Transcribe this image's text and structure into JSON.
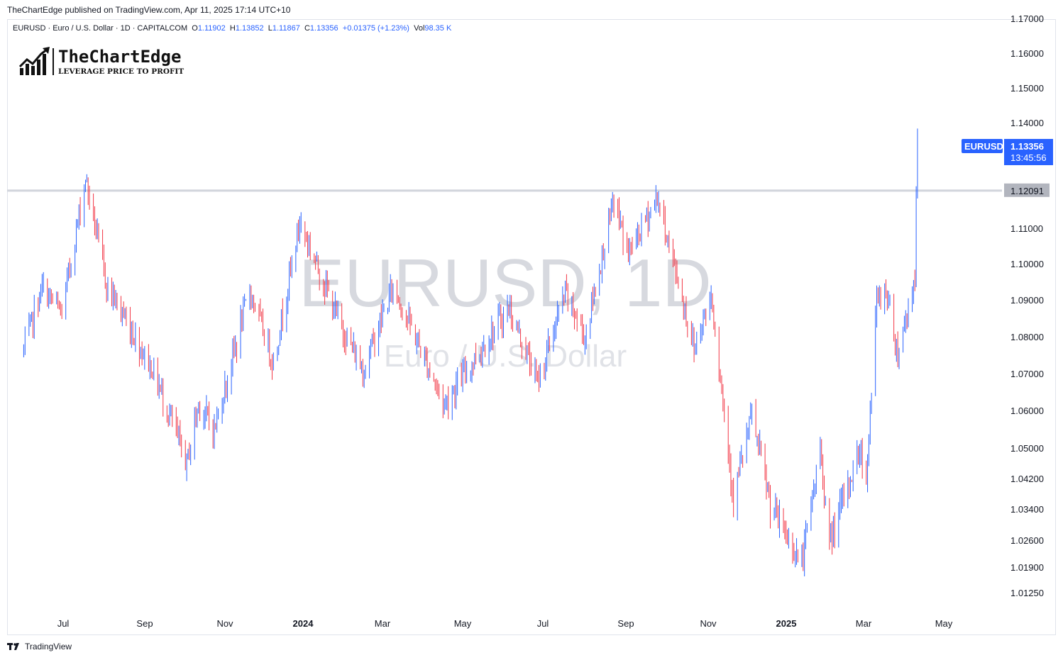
{
  "publisher_line": "TheChartEdge published on TradingView.com, Apr 11, 2025 17:14 UTC+10",
  "legend": {
    "symbol_desc": "EURUSD · Euro / U.S. Dollar · 1D · CAPITALCOM",
    "o_label": "O",
    "o": "1.11902",
    "h_label": "H",
    "h": "1.13852",
    "l_label": "L",
    "l": "1.11867",
    "c_label": "C",
    "c": "1.13356",
    "change": "+0.01375 (+1.23%)",
    "vol_label": "Vol",
    "vol": "98.35 K"
  },
  "logo": {
    "name": "TheChartEdge",
    "tagline": "LEVERAGE PRICE TO PROFIT"
  },
  "watermark": {
    "line1": "EURUSD, 1D",
    "line2": "Euro / U.S. Dollar"
  },
  "footer": {
    "brand": "TradingView",
    "brand_icon": "tradingview-logo-icon"
  },
  "colors": {
    "up": "#2962ff",
    "down": "#f23645",
    "level_line": "#d1d4dc",
    "price_badge": "#2962ff",
    "level_badge": "#b2b5be"
  },
  "chart_data": {
    "type": "candlestick",
    "symbol": "EURUSD",
    "interval": "1D",
    "y_ticks": [
      1.17,
      1.16,
      1.15,
      1.14,
      1.11,
      1.1,
      1.09,
      1.08,
      1.07,
      1.06,
      1.05,
      1.042,
      1.034,
      1.026,
      1.019,
      1.0125
    ],
    "y_tick_labels": [
      "1.17000",
      "1.16000",
      "1.15000",
      "1.14000",
      "1.11000",
      "1.10000",
      "1.09000",
      "1.08000",
      "1.07000",
      "1.06000",
      "1.05000",
      "1.04200",
      "1.03400",
      "1.02600",
      "1.01900",
      "1.01250"
    ],
    "x_ticks": [
      {
        "label": "Jul",
        "date": "2023-07-01",
        "bold": false
      },
      {
        "label": "Sep",
        "date": "2023-09-01",
        "bold": false
      },
      {
        "label": "Nov",
        "date": "2023-11-01",
        "bold": false
      },
      {
        "label": "2024",
        "date": "2024-01-01",
        "bold": true
      },
      {
        "label": "Mar",
        "date": "2024-03-01",
        "bold": false
      },
      {
        "label": "May",
        "date": "2024-05-01",
        "bold": false
      },
      {
        "label": "Jul",
        "date": "2024-07-01",
        "bold": false
      },
      {
        "label": "Sep",
        "date": "2024-09-01",
        "bold": false
      },
      {
        "label": "Nov",
        "date": "2024-11-01",
        "bold": false
      },
      {
        "label": "2025",
        "date": "2025-01-01",
        "bold": true
      },
      {
        "label": "Mar",
        "date": "2025-03-01",
        "bold": false
      },
      {
        "label": "May",
        "date": "2025-05-01",
        "bold": false
      }
    ],
    "horizontal_level": {
      "value": 1.12091,
      "label": "1.12091"
    },
    "last_price": {
      "symbol": "EURUSD",
      "value": 1.13356,
      "label": "1.13356",
      "countdown": "13:45:56"
    },
    "price_path": [
      {
        "d": "2023-06-01",
        "v": 1.0765
      },
      {
        "d": "2023-06-15",
        "v": 1.0935
      },
      {
        "d": "2023-06-30",
        "v": 1.0865
      },
      {
        "d": "2023-07-18",
        "v": 1.1245
      },
      {
        "d": "2023-08-03",
        "v": 1.0945
      },
      {
        "d": "2023-08-24",
        "v": 1.0805
      },
      {
        "d": "2023-09-08",
        "v": 1.0705
      },
      {
        "d": "2023-10-03",
        "v": 1.046
      },
      {
        "d": "2023-10-12",
        "v": 1.062
      },
      {
        "d": "2023-10-24",
        "v": 1.055
      },
      {
        "d": "2023-11-20",
        "v": 1.093
      },
      {
        "d": "2023-12-08",
        "v": 1.073
      },
      {
        "d": "2023-12-28",
        "v": 1.112
      },
      {
        "d": "2024-01-26",
        "v": 1.085
      },
      {
        "d": "2024-02-14",
        "v": 1.071
      },
      {
        "d": "2024-03-08",
        "v": 1.094
      },
      {
        "d": "2024-04-16",
        "v": 1.062
      },
      {
        "d": "2024-06-04",
        "v": 1.088
      },
      {
        "d": "2024-06-26",
        "v": 1.068
      },
      {
        "d": "2024-07-17",
        "v": 1.092
      },
      {
        "d": "2024-08-01",
        "v": 1.08
      },
      {
        "d": "2024-08-23",
        "v": 1.118
      },
      {
        "d": "2024-09-03",
        "v": 1.103
      },
      {
        "d": "2024-09-25",
        "v": 1.119
      },
      {
        "d": "2024-10-23",
        "v": 1.077
      },
      {
        "d": "2024-11-05",
        "v": 1.092
      },
      {
        "d": "2024-11-22",
        "v": 1.037
      },
      {
        "d": "2024-12-06",
        "v": 1.059
      },
      {
        "d": "2024-12-20",
        "v": 1.035
      },
      {
        "d": "2025-01-13",
        "v": 1.02
      },
      {
        "d": "2025-01-27",
        "v": 1.05
      },
      {
        "d": "2025-02-03",
        "v": 1.025
      },
      {
        "d": "2025-02-26",
        "v": 1.05
      },
      {
        "d": "2025-03-03",
        "v": 1.042
      },
      {
        "d": "2025-03-11",
        "v": 1.09
      },
      {
        "d": "2025-03-18",
        "v": 1.093
      },
      {
        "d": "2025-03-27",
        "v": 1.076
      },
      {
        "d": "2025-04-02",
        "v": 1.085
      },
      {
        "d": "2025-04-09",
        "v": 1.097
      },
      {
        "d": "2025-04-10",
        "v": 1.119
      },
      {
        "d": "2025-04-11",
        "v": 1.1336
      }
    ]
  }
}
